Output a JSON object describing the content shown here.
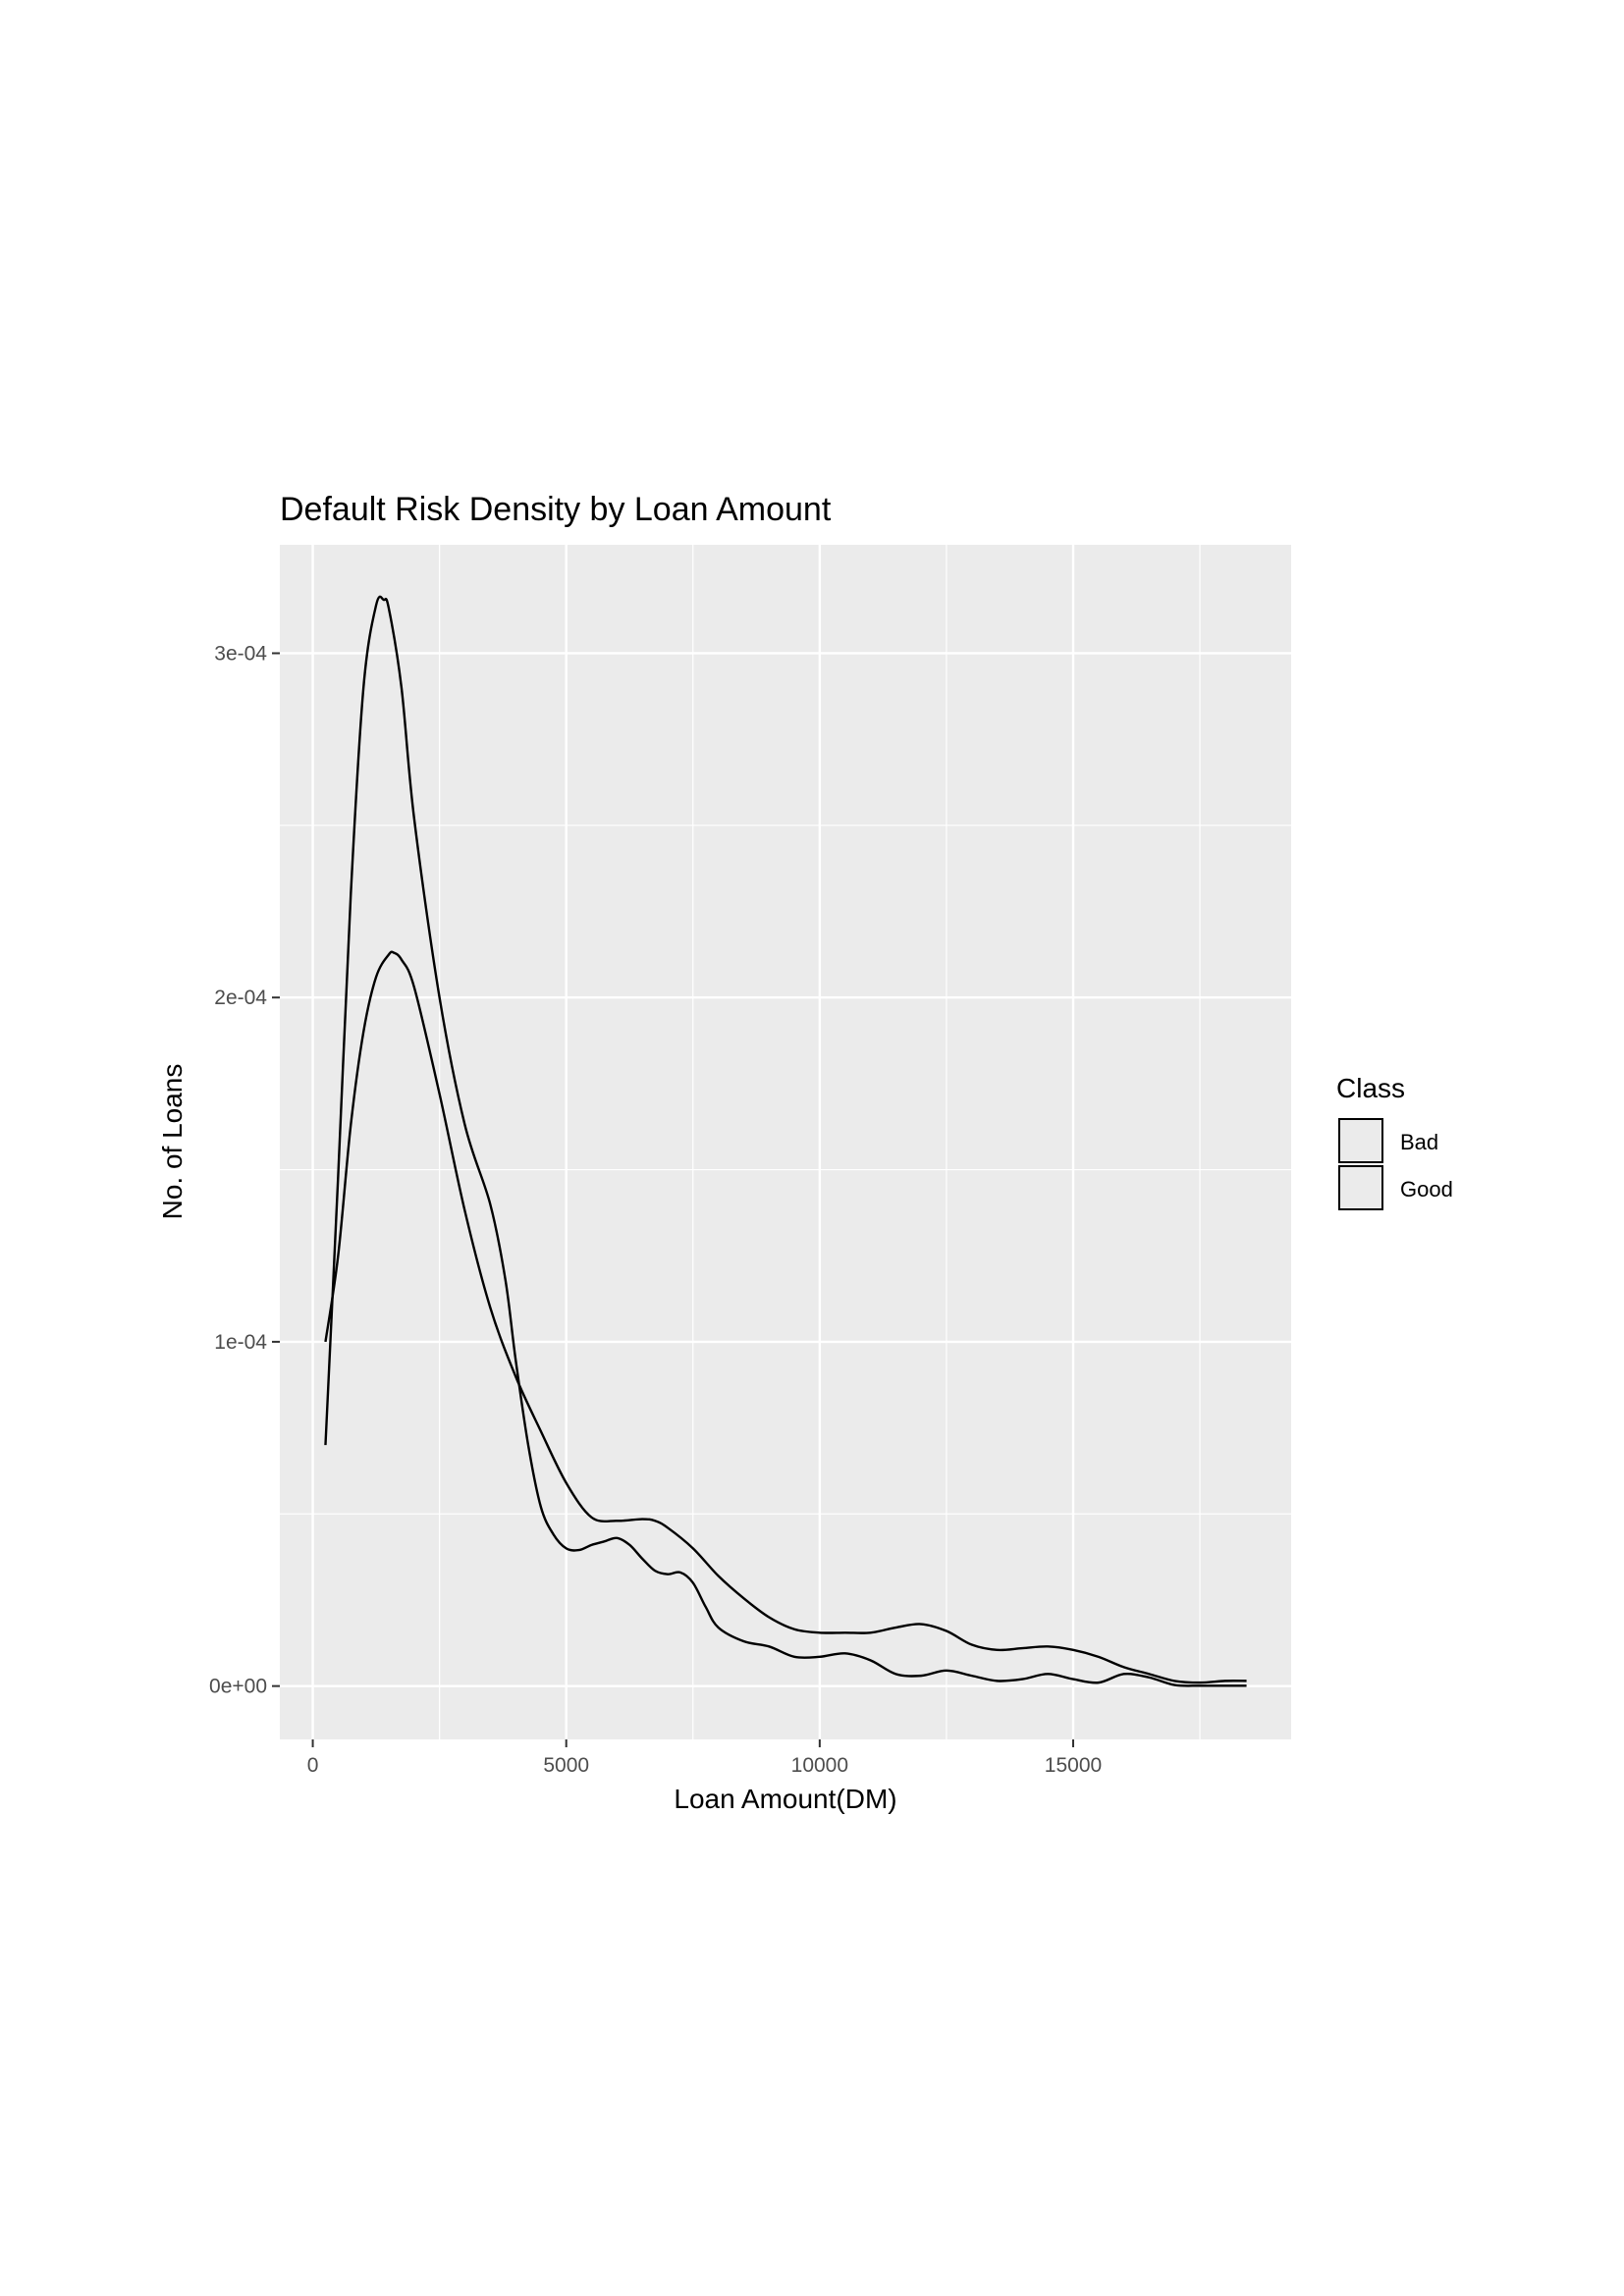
{
  "chart_data": {
    "type": "area",
    "title": "Default Risk Density by Loan Amount",
    "xlabel": "Loan Amount(DM)",
    "ylabel": "No. of Loans",
    "xlim": [
      -650,
      19300
    ],
    "ylim": [
      -1.55e-05,
      0.0003315
    ],
    "x_ticks": [
      0,
      5000,
      10000,
      15000
    ],
    "x_tick_labels": [
      "0",
      "5000",
      "10000",
      "15000"
    ],
    "y_ticks": [
      0,
      0.0001,
      0.0002,
      0.0003
    ],
    "y_tick_labels": [
      "0e+00",
      "1e-04",
      "2e-04",
      "3e-04"
    ],
    "grid": true,
    "legend": {
      "title": "Class",
      "placement": "right",
      "entries": [
        "Bad",
        "Good"
      ]
    },
    "colors": {
      "panel": "#ebebeb",
      "grid_major": "#ffffff",
      "line": "#000000",
      "legend_key_fill": "#ebebeb"
    },
    "series": [
      {
        "name": "Good",
        "x": [
          250,
          500,
          750,
          1000,
          1250,
          1400,
          1500,
          1750,
          2000,
          2500,
          3000,
          3500,
          3800,
          4000,
          4250,
          4500,
          4750,
          5000,
          5250,
          5500,
          5750,
          6000,
          6250,
          6500,
          6750,
          7000,
          7250,
          7500,
          7750,
          8000,
          8500,
          9000,
          9500,
          10000,
          10500,
          11000,
          11500,
          12000,
          12500,
          13000,
          13500,
          14000,
          14500,
          15000,
          15500,
          16000,
          16500,
          17000,
          17500,
          18000,
          18420
        ],
        "y": [
          7e-05,
          0.000148,
          0.00023,
          0.00029,
          0.000314,
          0.0003155,
          0.000313,
          0.00029,
          0.000252,
          0.0002,
          0.000163,
          0.00014,
          0.000118,
          9.5e-05,
          7e-05,
          5.2e-05,
          4.4e-05,
          4e-05,
          3.95e-05,
          4.1e-05,
          4.2e-05,
          4.3e-05,
          4.1e-05,
          3.7e-05,
          3.35e-05,
          3.25e-05,
          3.3e-05,
          3e-05,
          2.3e-05,
          1.7e-05,
          1.3e-05,
          1.15e-05,
          8.5e-06,
          8.5e-06,
          9.5e-06,
          7.5e-06,
          3.5e-06,
          3e-06,
          4.5e-06,
          3e-06,
          1.5e-06,
          2e-06,
          3.5e-06,
          2e-06,
          1e-06,
          3.5e-06,
          2.5e-06,
          3e-07,
          1e-07,
          1e-07,
          1e-07
        ]
      },
      {
        "name": "Bad",
        "x": [
          250,
          500,
          750,
          1000,
          1250,
          1500,
          1600,
          1750,
          2000,
          2500,
          3000,
          3500,
          4000,
          4500,
          5000,
          5500,
          6000,
          6500,
          6750,
          7000,
          7500,
          8000,
          8500,
          9000,
          9500,
          10000,
          10500,
          11000,
          11500,
          12000,
          12500,
          13000,
          13500,
          14000,
          14500,
          15000,
          15500,
          16000,
          16500,
          17000,
          17500,
          18000,
          18420
        ],
        "y": [
          0.0001,
          0.000125,
          0.000163,
          0.00019,
          0.000206,
          0.0002125,
          0.000213,
          0.000211,
          0.000203,
          0.000172,
          0.000138,
          0.00011,
          9e-05,
          7.4e-05,
          5.9e-05,
          4.9e-05,
          4.8e-05,
          4.85e-05,
          4.8e-05,
          4.6e-05,
          4e-05,
          3.2e-05,
          2.55e-05,
          2e-05,
          1.65e-05,
          1.55e-05,
          1.55e-05,
          1.55e-05,
          1.7e-05,
          1.8e-05,
          1.6e-05,
          1.2e-05,
          1.05e-05,
          1.1e-05,
          1.15e-05,
          1.05e-05,
          8.5e-06,
          5.5e-06,
          3.5e-06,
          1.5e-06,
          1e-06,
          1.5e-06,
          1.5e-06
        ]
      }
    ]
  }
}
